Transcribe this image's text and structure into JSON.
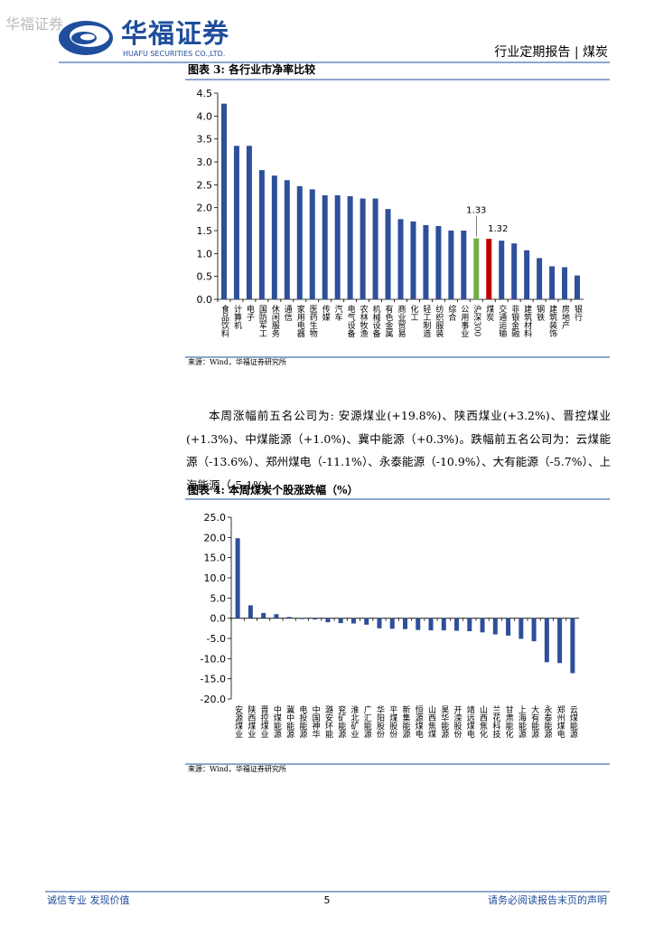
{
  "header": {
    "watermark": "华福证券",
    "logo_cn": "华福证券",
    "logo_en": "HUAFU SECURITIES CO.,LTD.",
    "report_type": "行业定期报告 | 煤炭"
  },
  "chart_data": [
    {
      "type": "bar",
      "title": "图表 3: 各行业市净率比较",
      "source": "来源：Wind，华福证券研究所",
      "categories": [
        "食品饮料",
        "计算机",
        "电子",
        "国防军工",
        "休闲服务",
        "通信",
        "家用电器",
        "医药生物",
        "传媒",
        "汽车",
        "电气设备",
        "农林牧渔",
        "机械设备",
        "有色金属",
        "商业贸易",
        "化工",
        "轻工制造",
        "纺织服装",
        "综合",
        "公用事业",
        "沪深300",
        "煤炭",
        "交通运输",
        "非银金融",
        "建筑材料",
        "钢铁",
        "建筑装饰",
        "房地产",
        "银行"
      ],
      "values": [
        4.27,
        3.35,
        3.35,
        2.82,
        2.7,
        2.6,
        2.47,
        2.4,
        2.27,
        2.27,
        2.25,
        2.2,
        2.2,
        1.97,
        1.75,
        1.7,
        1.62,
        1.6,
        1.5,
        1.5,
        1.33,
        1.32,
        1.28,
        1.22,
        1.07,
        0.9,
        0.72,
        0.7,
        0.52
      ],
      "value_labels": [
        null,
        null,
        null,
        null,
        null,
        null,
        null,
        null,
        null,
        null,
        null,
        null,
        null,
        null,
        null,
        null,
        null,
        null,
        null,
        null,
        "1.33",
        "1.32",
        null,
        null,
        null,
        null,
        null,
        null,
        null
      ],
      "colors": [
        "#2e4f9a",
        "#2e4f9a",
        "#2e4f9a",
        "#2e4f9a",
        "#2e4f9a",
        "#2e4f9a",
        "#2e4f9a",
        "#2e4f9a",
        "#2e4f9a",
        "#2e4f9a",
        "#2e4f9a",
        "#2e4f9a",
        "#2e4f9a",
        "#2e4f9a",
        "#2e4f9a",
        "#2e4f9a",
        "#2e4f9a",
        "#2e4f9a",
        "#2e4f9a",
        "#2e4f9a",
        "#70ad47",
        "#c00000",
        "#2e4f9a",
        "#2e4f9a",
        "#2e4f9a",
        "#2e4f9a",
        "#2e4f9a",
        "#2e4f9a",
        "#2e4f9a"
      ],
      "ylim": [
        0,
        4.5
      ],
      "yticks": [
        {
          "value": 0,
          "label": "0.0"
        },
        0.5,
        {
          "value": 1,
          "label": "1.0"
        },
        1.5,
        {
          "value": 2,
          "label": "2.0"
        },
        2.5,
        {
          "value": 3,
          "label": "3.0"
        },
        3.5,
        {
          "value": 4,
          "label": "4.0"
        },
        4.5
      ]
    },
    {
      "type": "bar",
      "title": "图表 4: 本周煤炭个股涨跌幅（%）",
      "source": "来源：Wind，华福证券研究所",
      "categories": [
        "安源煤业",
        "陕西煤业",
        "晋控煤业",
        "中煤能源",
        "冀中能源",
        "电投能源",
        "中国神华",
        "潞安环能",
        "兖矿能源",
        "淮北矿业",
        "广汇能源",
        "华阳股份",
        "平煤股份",
        "新集能源",
        "恒源煤电",
        "山西焦煤",
        "昊华能源",
        "开滦股份",
        "靖远煤电",
        "山西焦化",
        "兰花科技",
        "甘肃能化",
        "上海能源",
        "大有能源",
        "永泰能源",
        "郑州煤电",
        "云煤能源"
      ],
      "values": [
        19.8,
        3.2,
        1.3,
        1.0,
        0.3,
        -0.2,
        -0.3,
        -1.0,
        -1.2,
        -1.3,
        -1.6,
        -2.5,
        -2.6,
        -2.7,
        -2.9,
        -3.0,
        -3.0,
        -3.1,
        -3.2,
        -3.5,
        -4.0,
        -4.3,
        -5.1,
        -5.7,
        -10.9,
        -11.1,
        -13.6
      ],
      "color": "#2e4f9a",
      "ylim": [
        -20,
        25
      ],
      "yticks": [
        {
          "value": -20,
          "label": "-20.0"
        },
        {
          "value": -15,
          "label": "-15.0"
        },
        {
          "value": -10,
          "label": "-10.0"
        },
        {
          "value": -5,
          "label": "-5.0"
        },
        {
          "value": 0,
          "label": "0.0"
        },
        {
          "value": 5,
          "label": "5.0"
        },
        {
          "value": 10,
          "label": "10.0"
        },
        {
          "value": 15,
          "label": "15.0"
        },
        {
          "value": 20,
          "label": "20.0"
        },
        {
          "value": 25,
          "label": "25.0"
        }
      ]
    }
  ],
  "paragraph": "本周涨幅前五名公司为: 安源煤业(+19.8%)、陕西煤业(+3.2%)、晋控煤业(+1.3%)、中煤能源（+1.0%)、冀中能源（+0.3%)。跌幅前五名公司为：云煤能源（-13.6%）、郑州煤电（-11.1%）、永泰能源（-10.9%）、大有能源（-5.7%）、上海能源（-5.1%).",
  "footer": {
    "left": "诚信专业  发现价值",
    "page": "5",
    "right": "请务必阅读报告末页的声明"
  }
}
